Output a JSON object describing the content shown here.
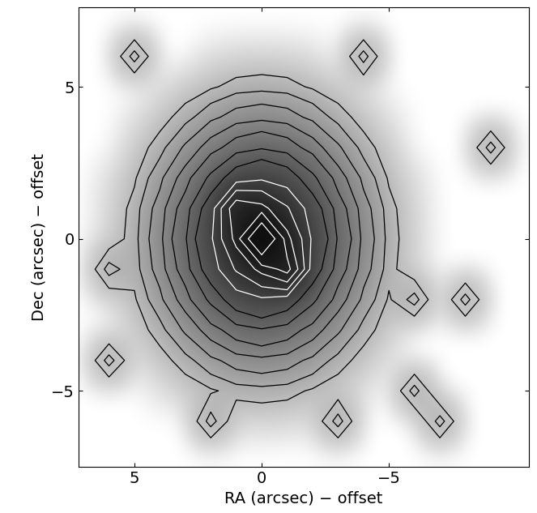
{
  "chart_data": {
    "type": "contour_image",
    "xlabel": "RA (arcsec) − offset",
    "ylabel": "Dec (arcsec) − offset",
    "x": [
      7,
      6,
      5,
      4,
      3,
      2,
      1,
      0,
      -1,
      -2,
      -3,
      -4,
      -5,
      -6,
      -7,
      -8,
      -9,
      -10
    ],
    "y": [
      7,
      6,
      5,
      4,
      3,
      2,
      1,
      0,
      -1,
      -2,
      -3,
      -4,
      -5,
      -6,
      -7
    ],
    "cells": [
      [
        0.05,
        0.05,
        0.05,
        0.05,
        0.05,
        0.05,
        0.05,
        0.05,
        0.05,
        0.05,
        0.05,
        0.05,
        0.05,
        0.05,
        0.05,
        0.05,
        0.05,
        0.05
      ],
      [
        0.05,
        0.05,
        0.6,
        0.05,
        0.05,
        0.12,
        0.14,
        0.15,
        0.14,
        0.12,
        0.05,
        0.6,
        0.05,
        0.05,
        0.05,
        0.05,
        0.05,
        0.05
      ],
      [
        0.05,
        0.05,
        0.05,
        0.11,
        0.18,
        0.27,
        0.37,
        0.4,
        0.37,
        0.27,
        0.18,
        0.11,
        0.05,
        0.05,
        0.05,
        0.05,
        0.05,
        0.05
      ],
      [
        0.05,
        0.05,
        0.11,
        0.21,
        0.4,
        0.69,
        0.98,
        1.1,
        0.98,
        0.69,
        0.4,
        0.21,
        0.11,
        0.05,
        0.05,
        0.05,
        0.05,
        0.05
      ],
      [
        0.05,
        0.05,
        0.18,
        0.4,
        0.86,
        1.6,
        2.5,
        3.0,
        2.5,
        1.6,
        0.86,
        0.4,
        0.18,
        0.05,
        0.05,
        0.05,
        0.6,
        0.05
      ],
      [
        0.05,
        0.12,
        0.27,
        0.69,
        1.6,
        3.5,
        6.4,
        8.1,
        6.4,
        3.5,
        1.6,
        0.69,
        0.27,
        0.12,
        0.05,
        0.05,
        0.05,
        0.05
      ],
      [
        0.05,
        0.14,
        0.37,
        0.98,
        2.5,
        6.4,
        25,
        22,
        14.6,
        6.4,
        2.5,
        0.98,
        0.37,
        0.14,
        0.05,
        0.05,
        0.05,
        0.05
      ],
      [
        0.05,
        0.15,
        0.4,
        1.1,
        3.0,
        8.1,
        22,
        60,
        22,
        8.1,
        3.0,
        1.1,
        0.4,
        0.15,
        0.05,
        0.05,
        0.05,
        0.05
      ],
      [
        0.05,
        0.6,
        0.37,
        0.98,
        2.5,
        6.4,
        14.6,
        22,
        30,
        6.4,
        2.5,
        0.98,
        0.37,
        0.14,
        0.05,
        0.05,
        0.05,
        0.05
      ],
      [
        0.05,
        0.12,
        0.27,
        0.69,
        1.6,
        3.5,
        6.4,
        8.1,
        6.4,
        3.5,
        1.6,
        0.69,
        0.27,
        0.6,
        0.05,
        0.6,
        0.05,
        0.05
      ],
      [
        0.05,
        0.05,
        0.18,
        0.4,
        0.86,
        1.6,
        2.5,
        3.0,
        2.5,
        1.6,
        0.86,
        0.4,
        0.18,
        0.05,
        0.05,
        0.05,
        0.05,
        0.05
      ],
      [
        0.05,
        0.6,
        0.11,
        0.21,
        0.4,
        0.69,
        0.98,
        1.1,
        0.98,
        0.69,
        0.4,
        0.21,
        0.11,
        0.05,
        0.05,
        0.05,
        0.05,
        0.05
      ],
      [
        0.05,
        0.05,
        0.05,
        0.11,
        0.18,
        0.27,
        0.37,
        0.4,
        0.37,
        0.27,
        0.18,
        0.11,
        0.05,
        0.6,
        0.05,
        0.05,
        0.05,
        0.05
      ],
      [
        0.05,
        0.05,
        0.05,
        0.05,
        0.05,
        0.6,
        0.14,
        0.15,
        0.14,
        0.12,
        0.6,
        0.05,
        0.05,
        0.05,
        0.6,
        0.05,
        0.05,
        0.05
      ],
      [
        0.05,
        0.05,
        0.05,
        0.05,
        0.05,
        0.05,
        0.05,
        0.05,
        0.05,
        0.05,
        0.05,
        0.05,
        0.05,
        0.05,
        0.05,
        0.05,
        0.05,
        0.05
      ]
    ],
    "contour_levels": [
      0.3,
      0.5,
      0.8,
      1.3,
      2,
      3.2,
      5
    ],
    "white_contour_levels": [
      9,
      14,
      20,
      27,
      40
    ],
    "xlim": [
      7.2,
      -10.5
    ],
    "ylim": [
      -7.5,
      7.6
    ],
    "xticks": [
      5,
      0,
      {
        "value": -5,
        "label": "−5"
      }
    ],
    "yticks": [
      {
        "value": -5,
        "label": "−5"
      },
      0,
      5
    ]
  }
}
